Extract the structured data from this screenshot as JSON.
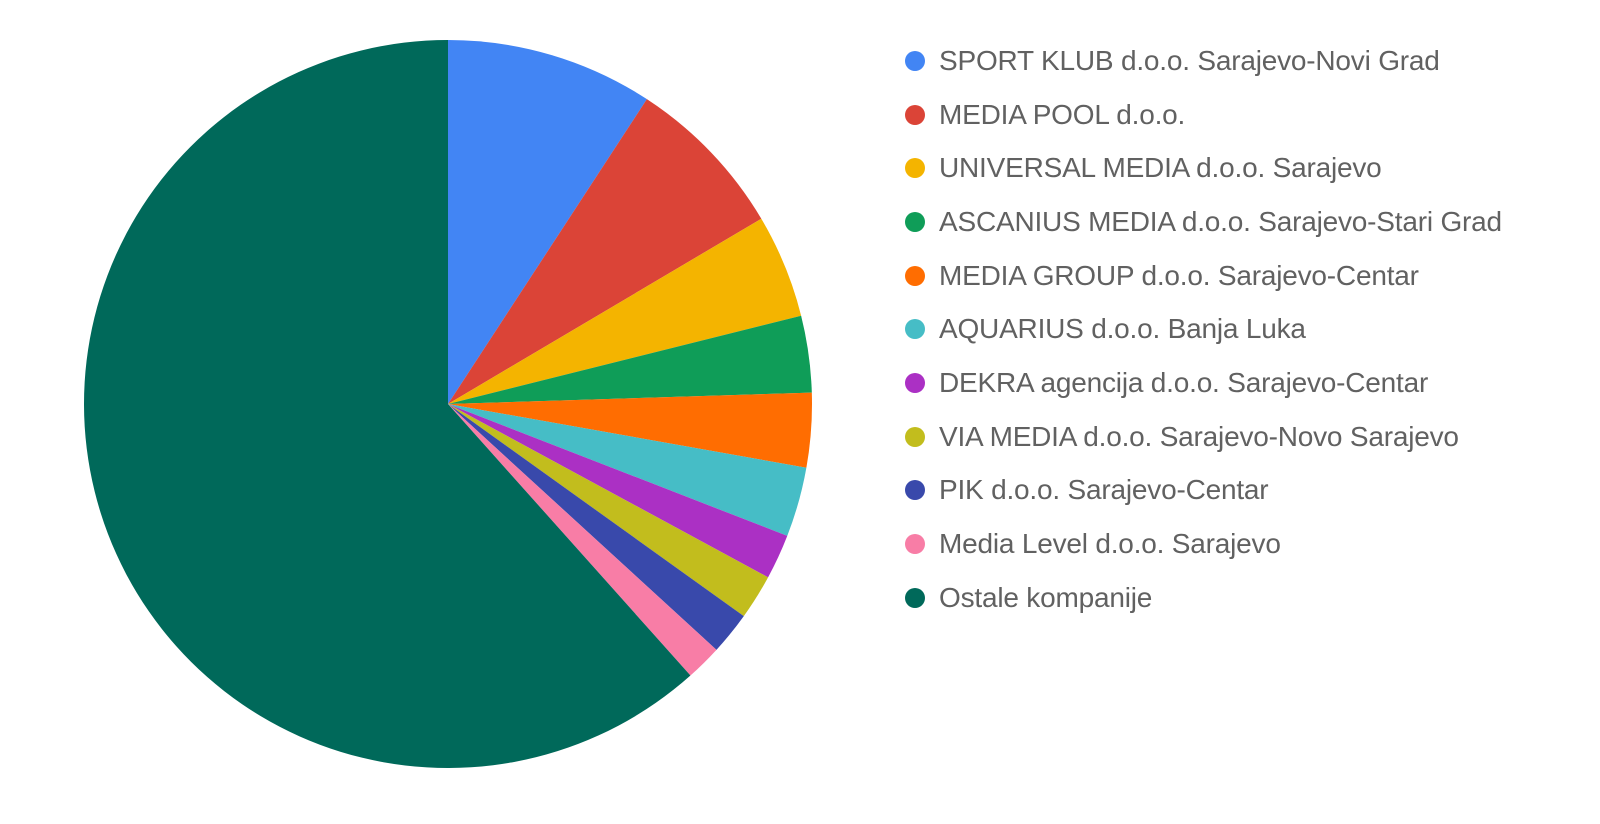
{
  "chart_data": {
    "type": "pie",
    "title": "",
    "legend_position": "right",
    "start_angle": "12 o'clock",
    "direction": "clockwise",
    "slices": [
      {
        "label": "SPORT KLUB d.o.o. Sarajevo-Novi Grad",
        "value": 9.2,
        "color": "#4285F4"
      },
      {
        "label": "MEDIA POOL d.o.o.",
        "value": 7.3,
        "color": "#DB4437"
      },
      {
        "label": "UNIVERSAL MEDIA d.o.o. Sarajevo",
        "value": 4.6,
        "color": "#F4B400"
      },
      {
        "label": "ASCANIUS MEDIA d.o.o. Sarajevo-Stari Grad",
        "value": 3.4,
        "color": "#0F9D58"
      },
      {
        "label": "MEDIA GROUP d.o.o. Sarajevo-Centar",
        "value": 3.3,
        "color": "#FF6D01"
      },
      {
        "label": "AQUARIUS d.o.o. Banja Luka",
        "value": 3.1,
        "color": "#46BDC6"
      },
      {
        "label": "DEKRA agencija d.o.o. Sarajevo-Centar",
        "value": 2.0,
        "color": "#AB30C4"
      },
      {
        "label": "VIA MEDIA d.o.o. Sarajevo-Novo Sarajevo",
        "value": 2.0,
        "color": "#C2BD1D"
      },
      {
        "label": "PIK d.o.o. Sarajevo-Centar",
        "value": 1.9,
        "color": "#3949AB"
      },
      {
        "label": "Media Level d.o.o. Sarajevo",
        "value": 1.6,
        "color": "#F87DA6"
      },
      {
        "label": "Ostale kompanije",
        "value": 61.6,
        "color": "#00695A"
      }
    ]
  }
}
